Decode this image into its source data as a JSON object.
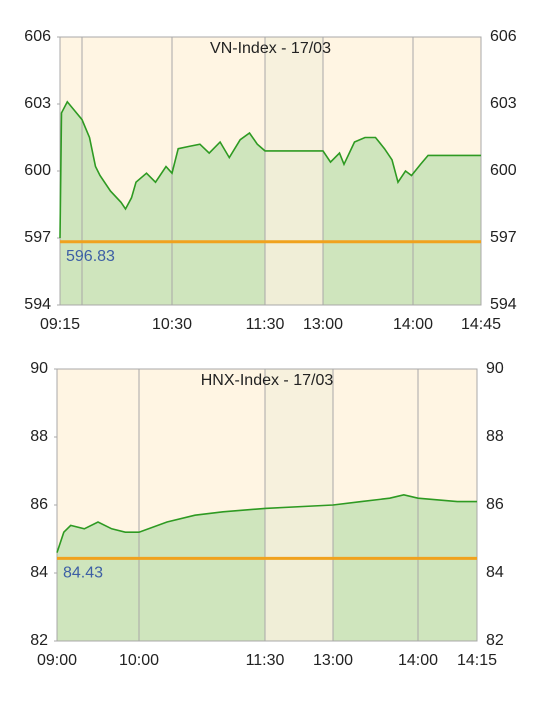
{
  "chart_data": [
    {
      "type": "line",
      "title": "VN-Index - 17/03",
      "x": [
        555,
        556,
        560,
        565,
        570,
        575,
        579,
        582,
        589,
        596,
        599,
        603,
        606,
        613,
        619,
        626,
        630,
        634,
        641,
        648,
        654,
        661,
        667,
        674,
        680,
        685,
        690,
        780,
        785,
        791,
        794,
        801,
        808,
        815,
        821,
        826,
        830,
        835,
        839,
        845,
        850,
        885
      ],
      "values": [
        597.0,
        602.6,
        603.1,
        602.7,
        602.3,
        601.5,
        600.2,
        599.8,
        599.1,
        598.6,
        598.3,
        598.8,
        599.5,
        599.9,
        599.5,
        600.2,
        599.9,
        601.0,
        601.1,
        601.2,
        600.8,
        601.3,
        600.6,
        601.4,
        601.7,
        601.2,
        600.9,
        600.9,
        600.4,
        600.8,
        600.3,
        601.3,
        601.5,
        601.5,
        601.0,
        600.5,
        599.5,
        600.0,
        599.8,
        600.3,
        600.7,
        600.7
      ],
      "color": "#2e9a22",
      "fill": "#cfe5bd",
      "xlim": [
        555,
        885
      ],
      "xticks": [
        {
          "value": 555,
          "label": "09:15"
        },
        {
          "value": 570,
          "label": null
        },
        {
          "value": 630,
          "label": "10:30"
        },
        {
          "value": 690,
          "label": "11:30"
        },
        {
          "value": 780,
          "label": "13:00"
        },
        {
          "value": 840,
          "label": "14:00"
        },
        {
          "value": 885,
          "label": "14:45"
        }
      ],
      "ylim": [
        594,
        606
      ],
      "yticks": [
        594,
        597,
        600,
        603,
        606
      ],
      "break": [
        690,
        780
      ],
      "reference": 596.83,
      "reference_label": "596.83",
      "reference_color": "#f0a21e"
    },
    {
      "type": "line",
      "title": "HNX-Index - 17/03",
      "x": [
        540,
        545,
        550,
        560,
        570,
        580,
        590,
        600,
        620,
        640,
        660,
        690,
        780,
        800,
        820,
        830,
        840,
        850,
        855
      ],
      "values": [
        84.6,
        85.2,
        85.4,
        85.3,
        85.5,
        85.3,
        85.2,
        85.2,
        85.5,
        85.7,
        85.8,
        85.9,
        86.0,
        86.1,
        86.2,
        86.3,
        86.2,
        86.1,
        86.1
      ],
      "color": "#2e9a22",
      "fill": "#cfe5bd",
      "xlim": [
        540,
        855
      ],
      "xticks": [
        {
          "value": 540,
          "label": "09:00"
        },
        {
          "value": 600,
          "label": "10:00"
        },
        {
          "value": 690,
          "label": "11:30"
        },
        {
          "value": 780,
          "label": "13:00"
        },
        {
          "value": 840,
          "label": "14:00"
        },
        {
          "value": 855,
          "label": "14:15"
        }
      ],
      "ylim": [
        82,
        90
      ],
      "yticks": [
        82,
        84,
        86,
        88,
        90
      ],
      "break": [
        690,
        780
      ],
      "reference": 84.43,
      "reference_label": "84.43",
      "reference_color": "#f0a21e"
    }
  ]
}
